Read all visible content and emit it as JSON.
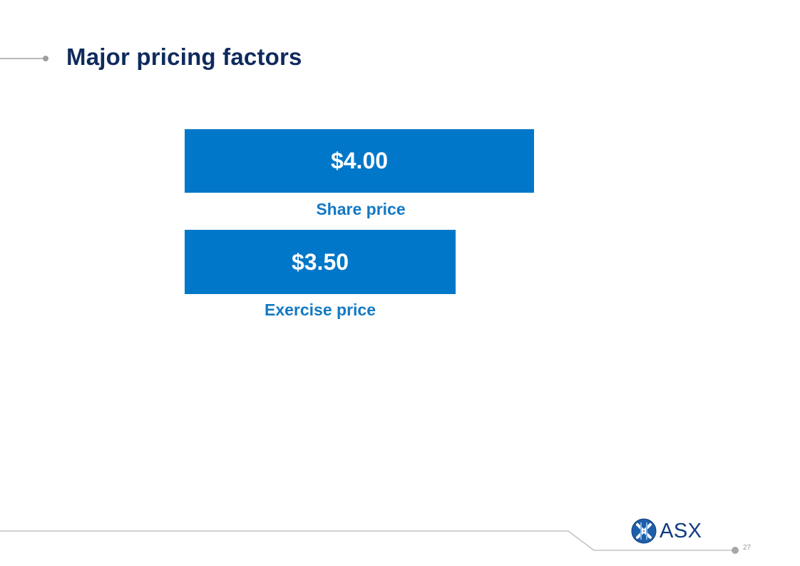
{
  "slide": {
    "title": "Major pricing factors",
    "page_number": "27"
  },
  "factors": [
    {
      "value": "$4.00",
      "label": "Share price"
    },
    {
      "value": "$3.50",
      "label": "Exercise price"
    }
  ],
  "brand": {
    "logo_text": "ASX",
    "accent_color": "#0077c8",
    "title_color": "#0f2a5e",
    "label_color": "#1479c3"
  }
}
